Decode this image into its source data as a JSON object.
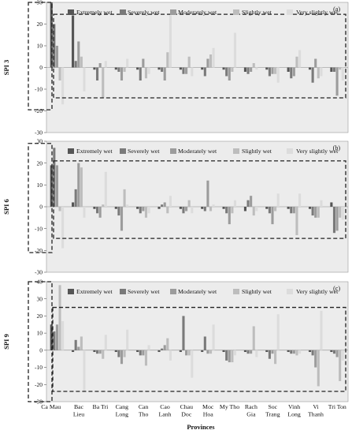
{
  "figure": {
    "xlabel": "Provinces",
    "provinces": [
      "Ca Mau",
      "Bac Lieu",
      "Ba Tri",
      "Cang Long",
      "Can Tho",
      "Cao Lanh",
      "Chau Doc",
      "Moc Hoa",
      "My Tho",
      "Rach Gia",
      "Soc Trang",
      "Vinh Long",
      "Vi Thanh",
      "Tri Ton"
    ],
    "province_lines": [
      [
        "Ca Mau"
      ],
      [
        "Bac",
        "Lieu"
      ],
      [
        "Ba Tri"
      ],
      [
        "Cang",
        "Long"
      ],
      [
        "Can",
        "Tho"
      ],
      [
        "Cao",
        "Lanh"
      ],
      [
        "Chau",
        "Doc"
      ],
      [
        "Moc",
        "Hoa"
      ],
      [
        "My Tho"
      ],
      [
        "Rach",
        "Gia"
      ],
      [
        "Soc",
        "Trang"
      ],
      [
        "Vinh",
        "Long"
      ],
      [
        "Vi",
        "Thanh"
      ],
      [
        "Tri Ton"
      ]
    ],
    "series_colors": [
      "#555555",
      "#7a7a7a",
      "#9c9c9c",
      "#bdbdbd",
      "#dcdcdc"
    ]
  },
  "chart_data": [
    {
      "type": "bar",
      "panel_label": "(a)",
      "ylabel": "SPI 3",
      "ylim": [
        -30,
        30
      ],
      "yticks": [
        30,
        20,
        10,
        0,
        -10,
        -20,
        -30
      ],
      "grid": false,
      "legend_position": "top",
      "categories": [
        "Ca Mau",
        "Bac Lieu",
        "Ba Tri",
        "Cang Long",
        "Can Tho",
        "Cao Lanh",
        "Chau Doc",
        "Moc Hoa",
        "My Tho",
        "Rach Gia",
        "Soc Trang",
        "Vinh Long",
        "Vi Thanh",
        "Tri Ton"
      ],
      "series": [
        {
          "name": "Extremely wet",
          "values": [
            30,
            24,
            -1,
            -1,
            -1,
            -1,
            -1,
            -1,
            -1,
            -2,
            -1,
            -2,
            -1,
            -2
          ]
        },
        {
          "name": "Severely wet",
          "values": [
            20,
            3,
            -6,
            -2,
            -6,
            -2,
            -3,
            -4,
            -4,
            -3,
            -4,
            -5,
            -7,
            -2
          ]
        },
        {
          "name": "Moderately wet",
          "values": [
            10,
            12,
            2,
            -6,
            4,
            -6,
            -3,
            4,
            -6,
            -2,
            -3,
            -4,
            4,
            -13
          ]
        },
        {
          "name": "Slightly wet",
          "values": [
            -6,
            5,
            -14,
            -2,
            -5,
            7,
            5,
            6,
            -2,
            2,
            -3,
            5,
            -5,
            -1
          ]
        },
        {
          "name": "Very slightly wet",
          "values": [
            -17,
            -11,
            3,
            4,
            -3,
            24,
            -4,
            9,
            16,
            -1,
            -7,
            8,
            -4,
            -6
          ]
        }
      ]
    },
    {
      "type": "bar",
      "panel_label": "(b)",
      "ylabel": "SPI 6",
      "ylim": [
        -30,
        30
      ],
      "yticks": [
        30,
        20,
        10,
        0,
        -10,
        -20,
        -30
      ],
      "grid": false,
      "legend_position": "top",
      "categories": [
        "Ca Mau",
        "Bac Lieu",
        "Ba Tri",
        "Cang Long",
        "Can Tho",
        "Cao Lanh",
        "Chau Doc",
        "Moc Hoa",
        "My Tho",
        "Rach Gia",
        "Soc Trang",
        "Vinh Long",
        "Vi Thanh",
        "Tri Ton"
      ],
      "series": [
        {
          "name": "Extremely wet",
          "values": [
            19,
            2,
            -1,
            -1,
            -1,
            -1,
            -1,
            -1,
            -1,
            -2,
            -1,
            -1,
            -1,
            2
          ]
        },
        {
          "name": "Severely wet",
          "values": [
            27,
            8,
            -3,
            -4,
            -3,
            1,
            -3,
            -2,
            -3,
            3,
            -3,
            -3,
            -4,
            -12
          ]
        },
        {
          "name": "Moderately wet",
          "values": [
            19,
            20,
            -5,
            -11,
            -2,
            2,
            -2,
            12,
            -8,
            5,
            -8,
            -3,
            -5,
            -11
          ]
        },
        {
          "name": "Slightly wet",
          "values": [
            -2,
            18,
            1,
            8,
            -5,
            -3,
            3,
            -2,
            -3,
            -4,
            -2,
            -13,
            -5,
            -5
          ]
        },
        {
          "name": "Very slightly wet",
          "values": [
            -19,
            -5,
            16,
            1,
            -3,
            5,
            -3,
            1,
            3,
            -2,
            6,
            6,
            3,
            -6
          ]
        }
      ]
    },
    {
      "type": "bar",
      "panel_label": "(c)",
      "ylabel": "SPI 9",
      "ylim": [
        -30,
        40
      ],
      "yticks": [
        40,
        30,
        20,
        10,
        0,
        -10,
        -20,
        -30
      ],
      "grid": false,
      "legend_position": "top",
      "categories": [
        "Ca Mau",
        "Bac Lieu",
        "Ba Tri",
        "Cang Long",
        "Can Tho",
        "Cao Lanh",
        "Chau Doc",
        "Moc Hoa",
        "My Tho",
        "Rach Gia",
        "Soc Trang",
        "Vinh Long",
        "Vi Thanh",
        "Tri Ton"
      ],
      "series": [
        {
          "name": "Extremely wet",
          "values": [
            15,
            -1,
            -1,
            -1,
            -1,
            -1,
            -1,
            -1,
            -1,
            -1,
            -1,
            -1,
            -1,
            -1
          ]
        },
        {
          "name": "Severely wet",
          "values": [
            11,
            6,
            -2,
            -4,
            -3,
            1,
            20,
            8,
            -6,
            -2,
            -5,
            -2,
            -3,
            -2
          ]
        },
        {
          "name": "Moderately wet",
          "values": [
            15,
            2,
            -2,
            -8,
            -3,
            3,
            -3,
            -2,
            -7,
            -2,
            -2,
            -2,
            -10,
            -4
          ]
        },
        {
          "name": "Slightly wet",
          "values": [
            38,
            8,
            -5,
            -4,
            -9,
            7,
            -3,
            -2,
            -7,
            14,
            -8,
            -3,
            -21,
            -18
          ]
        },
        {
          "name": "Very slightly wet",
          "values": [
            17,
            -24,
            9,
            12,
            3,
            -6,
            -16,
            15,
            -3,
            -4,
            21,
            -2,
            23,
            -6
          ]
        }
      ]
    }
  ]
}
